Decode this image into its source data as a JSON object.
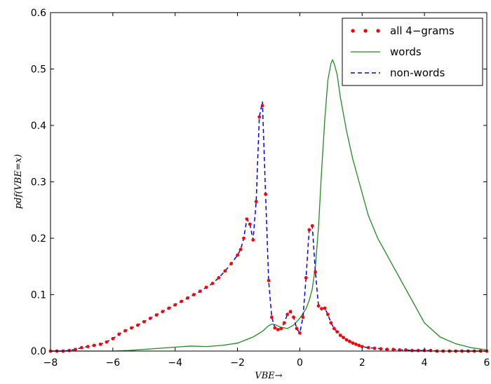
{
  "chart_data": {
    "type": "line",
    "xlabel": "VBE→",
    "ylabel": "pdf(VBE=x)",
    "xlim": [
      -8,
      6
    ],
    "ylim": [
      0,
      0.6
    ],
    "x_ticks": [
      -8,
      -6,
      -4,
      -2,
      0,
      2,
      4,
      6
    ],
    "x_tick_labels": [
      "−8",
      "−6",
      "−4",
      "−2",
      "0",
      "2",
      "4",
      "6"
    ],
    "y_ticks": [
      0,
      0.1,
      0.2,
      0.3,
      0.4,
      0.5,
      0.6
    ],
    "y_tick_labels": [
      "0.0",
      "0.1",
      "0.2",
      "0.3",
      "0.4",
      "0.5",
      "0.6"
    ],
    "grid": false,
    "legend_position": "top-right",
    "series": [
      {
        "name": "all 4−grams",
        "style": "dotted-markers",
        "color": "#ff0000",
        "x": [
          -8.0,
          -7.8,
          -7.6,
          -7.4,
          -7.2,
          -7.0,
          -6.8,
          -6.6,
          -6.4,
          -6.2,
          -6.0,
          -5.8,
          -5.6,
          -5.4,
          -5.2,
          -5.0,
          -4.8,
          -4.6,
          -4.4,
          -4.2,
          -4.0,
          -3.8,
          -3.6,
          -3.4,
          -3.2,
          -3.0,
          -2.8,
          -2.6,
          -2.4,
          -2.2,
          -2.0,
          -1.9,
          -1.8,
          -1.7,
          -1.6,
          -1.5,
          -1.4,
          -1.3,
          -1.2,
          -1.1,
          -1.0,
          -0.9,
          -0.8,
          -0.7,
          -0.6,
          -0.5,
          -0.4,
          -0.3,
          -0.2,
          -0.1,
          0.0,
          0.1,
          0.2,
          0.3,
          0.4,
          0.5,
          0.6,
          0.7,
          0.8,
          0.9,
          1.0,
          1.1,
          1.2,
          1.3,
          1.4,
          1.5,
          1.6,
          1.7,
          1.8,
          1.9,
          2.0,
          2.2,
          2.4,
          2.6,
          2.8,
          3.0,
          3.2,
          3.4,
          3.6,
          3.8,
          4.0,
          4.2,
          4.4,
          4.6,
          4.8,
          5.0,
          5.2,
          5.4,
          5.6,
          5.8,
          6.0
        ],
        "y": [
          0.0,
          0.0,
          0.0,
          0.001,
          0.003,
          0.006,
          0.008,
          0.01,
          0.012,
          0.016,
          0.022,
          0.03,
          0.036,
          0.041,
          0.046,
          0.052,
          0.058,
          0.064,
          0.07,
          0.076,
          0.082,
          0.088,
          0.094,
          0.1,
          0.106,
          0.113,
          0.12,
          0.13,
          0.142,
          0.155,
          0.17,
          0.18,
          0.2,
          0.234,
          0.225,
          0.197,
          0.265,
          0.415,
          0.435,
          0.278,
          0.125,
          0.06,
          0.041,
          0.038,
          0.04,
          0.05,
          0.065,
          0.07,
          0.06,
          0.04,
          0.032,
          0.06,
          0.13,
          0.215,
          0.222,
          0.14,
          0.08,
          0.075,
          0.076,
          0.065,
          0.05,
          0.04,
          0.034,
          0.028,
          0.024,
          0.02,
          0.017,
          0.014,
          0.012,
          0.01,
          0.008,
          0.006,
          0.005,
          0.004,
          0.003,
          0.003,
          0.002,
          0.002,
          0.001,
          0.001,
          0.001,
          0.001,
          0.0,
          0.0,
          0.0,
          0.0,
          0.0,
          0.0,
          0.0,
          0.0,
          0.0
        ]
      },
      {
        "name": "words",
        "style": "solid",
        "color": "#228b22",
        "x": [
          -8.0,
          -7.0,
          -6.5,
          -6.0,
          -5.5,
          -5.0,
          -4.5,
          -4.0,
          -3.5,
          -3.0,
          -2.5,
          -2.0,
          -1.5,
          -1.2,
          -1.0,
          -0.9,
          -0.8,
          -0.6,
          -0.4,
          -0.2,
          0.0,
          0.2,
          0.3,
          0.4,
          0.5,
          0.6,
          0.7,
          0.8,
          0.9,
          1.0,
          1.05,
          1.1,
          1.2,
          1.3,
          1.5,
          1.7,
          2.0,
          2.2,
          2.5,
          2.8,
          3.0,
          3.5,
          4.0,
          4.5,
          5.0,
          5.5,
          6.0
        ],
        "y": [
          0.0,
          0.0,
          0.0,
          0.0,
          0.001,
          0.003,
          0.005,
          0.007,
          0.009,
          0.008,
          0.01,
          0.014,
          0.025,
          0.035,
          0.045,
          0.048,
          0.047,
          0.042,
          0.04,
          0.046,
          0.058,
          0.075,
          0.09,
          0.11,
          0.15,
          0.22,
          0.32,
          0.41,
          0.48,
          0.51,
          0.516,
          0.51,
          0.49,
          0.45,
          0.39,
          0.34,
          0.28,
          0.24,
          0.2,
          0.17,
          0.15,
          0.1,
          0.05,
          0.025,
          0.013,
          0.006,
          0.002
        ]
      },
      {
        "name": "non-words",
        "style": "dashed",
        "color": "#0000ff",
        "x": [
          -8.0,
          -7.8,
          -7.6,
          -7.4,
          -7.2,
          -7.0,
          -6.8,
          -6.6,
          -6.4,
          -6.2,
          -6.0,
          -5.8,
          -5.6,
          -5.4,
          -5.2,
          -5.0,
          -4.8,
          -4.6,
          -4.4,
          -4.2,
          -4.0,
          -3.8,
          -3.6,
          -3.4,
          -3.2,
          -3.0,
          -2.8,
          -2.6,
          -2.4,
          -2.2,
          -2.0,
          -1.9,
          -1.8,
          -1.7,
          -1.6,
          -1.5,
          -1.4,
          -1.3,
          -1.2,
          -1.1,
          -1.0,
          -0.9,
          -0.8,
          -0.7,
          -0.6,
          -0.5,
          -0.4,
          -0.3,
          -0.2,
          -0.1,
          0.0,
          0.1,
          0.2,
          0.3,
          0.4,
          0.5,
          0.6,
          0.7,
          0.8,
          0.9,
          1.0,
          1.1,
          1.2,
          1.3,
          1.4,
          1.5,
          1.6,
          1.7,
          1.8,
          1.9,
          2.0,
          2.2,
          2.4,
          2.6,
          2.8,
          3.0,
          3.2,
          3.4,
          3.6,
          3.8,
          4.0,
          4.2,
          4.4,
          4.6,
          4.8,
          5.0,
          5.2,
          5.4,
          5.6,
          5.8,
          6.0
        ],
        "y": [
          0.0,
          0.0,
          0.0,
          0.001,
          0.003,
          0.006,
          0.008,
          0.01,
          0.012,
          0.016,
          0.022,
          0.03,
          0.036,
          0.041,
          0.046,
          0.052,
          0.058,
          0.064,
          0.07,
          0.076,
          0.082,
          0.088,
          0.094,
          0.1,
          0.106,
          0.113,
          0.12,
          0.13,
          0.142,
          0.155,
          0.17,
          0.18,
          0.2,
          0.234,
          0.225,
          0.197,
          0.265,
          0.415,
          0.442,
          0.278,
          0.125,
          0.06,
          0.041,
          0.038,
          0.04,
          0.05,
          0.065,
          0.07,
          0.06,
          0.04,
          0.032,
          0.06,
          0.13,
          0.215,
          0.222,
          0.14,
          0.08,
          0.075,
          0.076,
          0.065,
          0.05,
          0.04,
          0.034,
          0.028,
          0.024,
          0.02,
          0.017,
          0.014,
          0.012,
          0.01,
          0.008,
          0.006,
          0.005,
          0.004,
          0.003,
          0.003,
          0.002,
          0.002,
          0.001,
          0.001,
          0.001,
          0.001,
          0.0,
          0.0,
          0.0,
          0.0,
          0.0,
          0.0,
          0.0,
          0.0,
          0.0
        ]
      }
    ]
  }
}
